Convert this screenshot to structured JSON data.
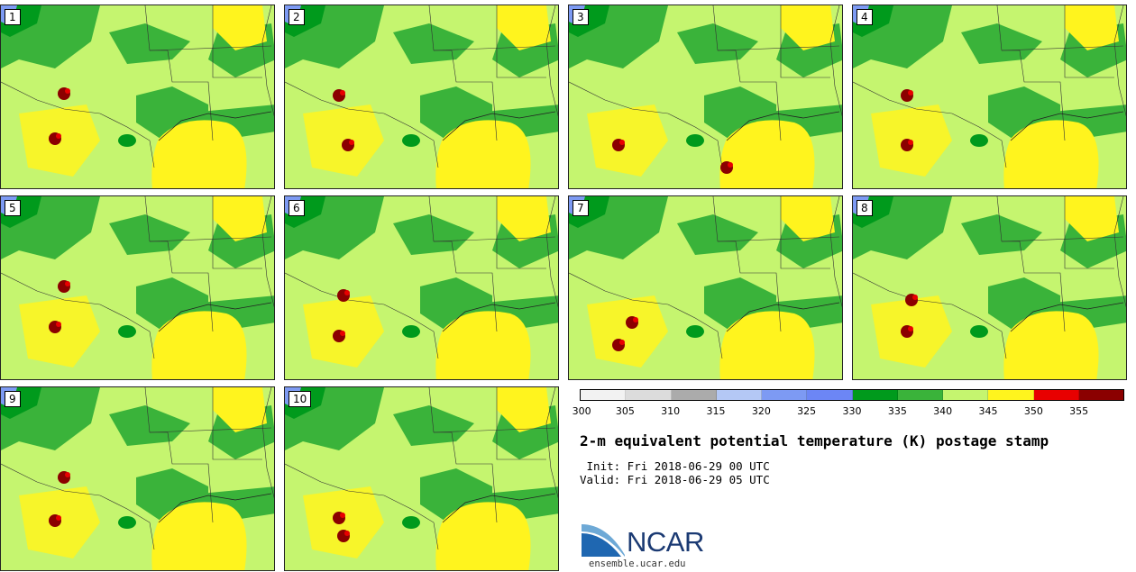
{
  "panels": [
    {
      "label": "1",
      "blobs": [
        [
          60,
          148
        ],
        [
          70,
          98
        ]
      ]
    },
    {
      "label": "2",
      "blobs": [
        [
          70,
          155
        ],
        [
          60,
          100
        ]
      ]
    },
    {
      "label": "3",
      "blobs": [
        [
          55,
          155
        ],
        [
          175,
          180
        ]
      ]
    },
    {
      "label": "4",
      "blobs": [
        [
          60,
          155
        ],
        [
          60,
          100
        ]
      ]
    },
    {
      "label": "5",
      "blobs": [
        [
          60,
          145
        ],
        [
          70,
          100
        ]
      ]
    },
    {
      "label": "6",
      "blobs": [
        [
          60,
          155
        ],
        [
          65,
          110
        ]
      ]
    },
    {
      "label": "7",
      "blobs": [
        [
          55,
          165
        ],
        [
          70,
          140
        ]
      ]
    },
    {
      "label": "8",
      "blobs": [
        [
          60,
          150
        ],
        [
          65,
          115
        ]
      ]
    },
    {
      "label": "9",
      "blobs": [
        [
          60,
          148
        ],
        [
          70,
          100
        ]
      ]
    },
    {
      "label": "10",
      "blobs": [
        [
          60,
          145
        ],
        [
          65,
          165
        ]
      ]
    }
  ],
  "colorbar": {
    "colors": [
      "#f2f2f2",
      "#dcdcdc",
      "#ababab",
      "#b4c8f5",
      "#7d9af3",
      "#6c86f5",
      "#009a1c",
      "#3ab33a",
      "#c5f56f",
      "#fff41e",
      "#e80000",
      "#8b0000"
    ],
    "tick_labels": [
      "300",
      "305",
      "310",
      "315",
      "320",
      "325",
      "330",
      "335",
      "340",
      "345",
      "350",
      "355"
    ]
  },
  "title": "2-m equivalent potential temperature (K) postage stamp",
  "init": " Init: Fri 2018-06-29 00 UTC",
  "valid": "Valid: Fri 2018-06-29 05 UTC",
  "logo": {
    "text": "NCAR",
    "url": "ensemble.ucar.edu"
  }
}
